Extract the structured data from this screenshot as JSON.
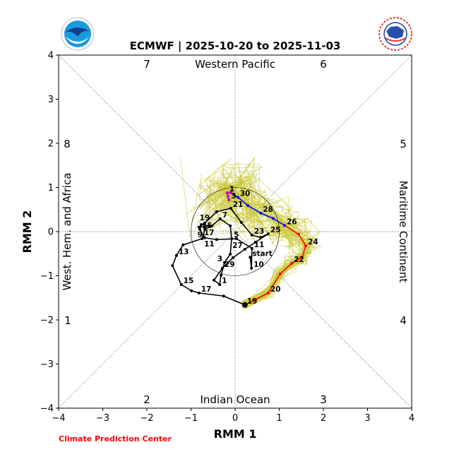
{
  "chart_data": {
    "type": "line",
    "title": "ECMWF | 2025-10-20 to 2025-11-03",
    "xlabel": "RMM 1",
    "ylabel": "RMM 2",
    "xlim": [
      -4,
      4
    ],
    "ylim": [
      -4,
      4
    ],
    "xticks": [
      "−4",
      "−3",
      "−2",
      "−1",
      "0",
      "1",
      "2",
      "3",
      "4"
    ],
    "yticks": [
      "−4",
      "−3",
      "−2",
      "−1",
      "0",
      "1",
      "2",
      "3",
      "4"
    ],
    "unit_circle_radius": 1,
    "phases": {
      "1": "1",
      "2": "2",
      "3": "3",
      "4": "4",
      "5": "5",
      "6": "6",
      "7": "7",
      "8": "8"
    },
    "regions": {
      "top": "Western Pacific",
      "bottom": "Indian Ocean",
      "left": "West. Hem. and Africa",
      "right": "Maritime Continent"
    },
    "credit": "Climate Prediction Center",
    "colors": {
      "observed": "#000000",
      "forecast_oct_early": "#ff0000",
      "forecast_oct_late": "#0000ff",
      "forecast_nov": "#c000c0",
      "ensemble": "#c8c832"
    },
    "observed": [
      {
        "x": 0.34,
        "y": -0.58,
        "label": "start"
      },
      {
        "x": 0.37,
        "y": -0.83,
        "label": "10"
      },
      {
        "x": 0.38,
        "y": -0.38,
        "label": "11"
      },
      {
        "x": 0.03,
        "y": -0.16
      },
      {
        "x": -0.42,
        "y": -0.18
      },
      {
        "x": -0.69,
        "y": -0.14
      },
      {
        "x": -0.8,
        "y": 0.05,
        "label": "15"
      },
      {
        "x": -0.77,
        "y": 0.16
      },
      {
        "x": -0.59,
        "y": 0.13,
        "label": "17"
      },
      {
        "x": -0.82,
        "y": 0.1
      },
      {
        "x": -0.69,
        "y": 0.19,
        "label": "19"
      },
      {
        "x": -0.42,
        "y": 0.45
      },
      {
        "x": -0.1,
        "y": 0.53,
        "label": "21"
      },
      {
        "x": 0.14,
        "y": 0.21
      },
      {
        "x": 0.38,
        "y": -0.08,
        "label": "23"
      },
      {
        "x": 0.58,
        "y": -0.13
      },
      {
        "x": 0.75,
        "y": -0.05,
        "label": "25"
      },
      {
        "x": 0.46,
        "y": -0.24
      },
      {
        "x": 0.22,
        "y": -0.4,
        "label": "27"
      },
      {
        "x": -0.05,
        "y": -0.59
      },
      {
        "x": -0.29,
        "y": -0.83,
        "label": "29"
      },
      {
        "x": -0.48,
        "y": -1.1
      },
      {
        "x": -0.35,
        "y": -1.2,
        "label": "1"
      },
      {
        "x": -0.32,
        "y": -0.99
      },
      {
        "x": -0.24,
        "y": -0.7,
        "label": "3"
      },
      {
        "x": -0.11,
        "y": -0.51
      },
      {
        "x": -0.08,
        "y": -0.16,
        "label": "5"
      },
      {
        "x": -0.11,
        "y": 0.13
      },
      {
        "x": -0.34,
        "y": 0.29,
        "label": "7"
      },
      {
        "x": -0.53,
        "y": 0.13
      },
      {
        "x": -0.69,
        "y": 0.05,
        "label": "9"
      },
      {
        "x": -0.72,
        "y": -0.11
      },
      {
        "x": -0.75,
        "y": -0.16,
        "label": "11"
      },
      {
        "x": -1.18,
        "y": -0.3
      },
      {
        "x": -1.33,
        "y": -0.54,
        "label": "13"
      },
      {
        "x": -1.42,
        "y": -0.77
      },
      {
        "x": -1.22,
        "y": -1.2,
        "label": "15"
      },
      {
        "x": -0.99,
        "y": -1.34
      },
      {
        "x": -0.82,
        "y": -1.39,
        "label": "17"
      },
      {
        "x": -0.26,
        "y": -1.46
      },
      {
        "x": 0.22,
        "y": -1.66,
        "label": "19"
      }
    ],
    "forecast_segments": [
      {
        "name": "forecast_oct_early",
        "points": [
          {
            "x": 0.22,
            "y": -1.66
          },
          {
            "x": 0.75,
            "y": -1.39,
            "label": "20"
          },
          {
            "x": 1.02,
            "y": -0.96
          },
          {
            "x": 1.28,
            "y": -0.72,
            "label": "22"
          },
          {
            "x": 1.52,
            "y": -0.58
          },
          {
            "x": 1.6,
            "y": -0.32,
            "label": "24"
          },
          {
            "x": 1.44,
            "y": -0.06
          },
          {
            "x": 1.12,
            "y": 0.14,
            "label": "26"
          }
        ]
      },
      {
        "name": "forecast_oct_late",
        "points": [
          {
            "x": 1.12,
            "y": 0.14
          },
          {
            "x": 0.86,
            "y": 0.3
          },
          {
            "x": 0.58,
            "y": 0.42,
            "label": "28"
          },
          {
            "x": 0.29,
            "y": 0.59
          },
          {
            "x": 0.06,
            "y": 0.78,
            "label": "30"
          },
          {
            "x": -0.1,
            "y": 0.88
          }
        ]
      },
      {
        "name": "forecast_nov",
        "points": [
          {
            "x": -0.1,
            "y": 0.88
          },
          {
            "x": -0.18,
            "y": 0.88,
            "label": "1"
          },
          {
            "x": -0.16,
            "y": 0.8
          },
          {
            "x": -0.14,
            "y": 0.72,
            "label": "3"
          }
        ]
      }
    ]
  }
}
